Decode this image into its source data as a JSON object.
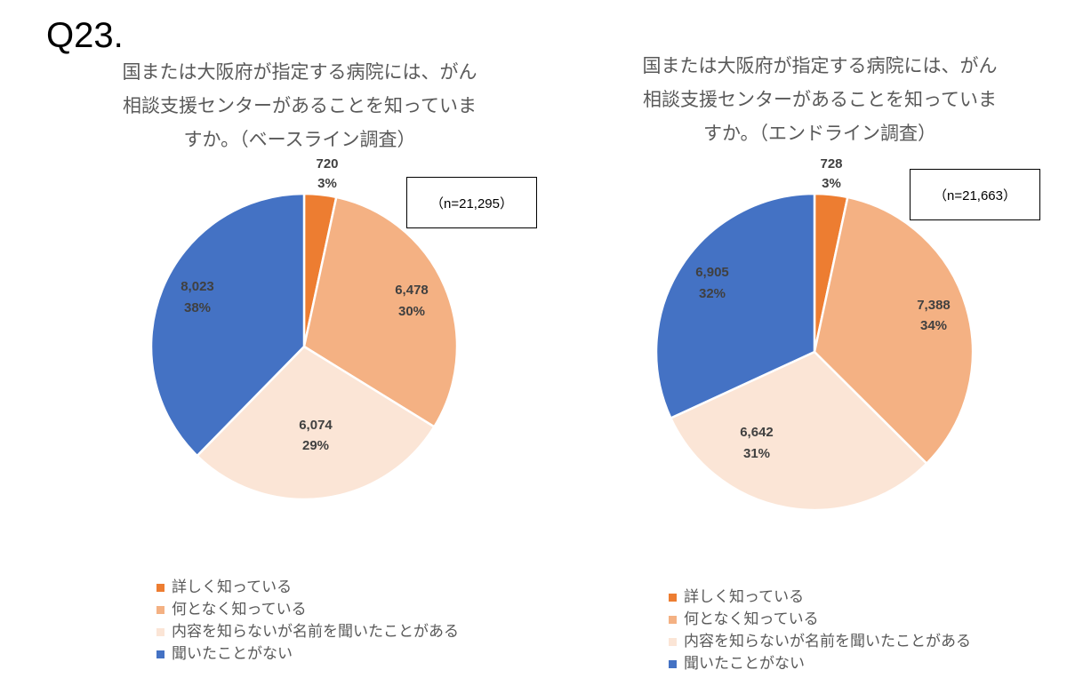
{
  "page": {
    "question_number": "Q23."
  },
  "colors": {
    "detail": "#ED7D31",
    "somewhat": "#F4B183",
    "name_only": "#FBE5D6",
    "never": "#4472C4"
  },
  "charts": [
    {
      "title_lines": [
        "国または大阪府が指定する病院には、がん",
        "相談支援センターがあることを知っていま",
        "すか。（ベースライン調査）"
      ],
      "n_label": "（n=21,295）",
      "slices": [
        {
          "value_label": "720",
          "pct_label": "3%"
        },
        {
          "value_label": "6,478",
          "pct_label": "30%"
        },
        {
          "value_label": "6,074",
          "pct_label": "29%"
        },
        {
          "value_label": "8,023",
          "pct_label": "38%"
        }
      ],
      "legend": [
        "詳しく知っている",
        "何となく知っている",
        "内容を知らないが名前を聞いたことがある",
        "聞いたことがない"
      ]
    },
    {
      "title_lines": [
        "国または大阪府が指定する病院には、がん",
        "相談支援センターがあることを知っていま",
        "すか。（エンドライン調査）"
      ],
      "n_label": "（n=21,663）",
      "slices": [
        {
          "value_label": "728",
          "pct_label": "3%"
        },
        {
          "value_label": "7,388",
          "pct_label": "34%"
        },
        {
          "value_label": "6,642",
          "pct_label": "31%"
        },
        {
          "value_label": "6,905",
          "pct_label": "32%"
        }
      ],
      "legend": [
        "詳しく知っている",
        "何となく知っている",
        "内容を知らないが名前を聞いたことがある",
        "聞いたことがない"
      ]
    }
  ],
  "chart_data": [
    {
      "type": "pie",
      "title": "国または大阪府が指定する病院には、がん相談支援センターがあることを知っていますか。（ベースライン調査）",
      "n": 21295,
      "categories": [
        "詳しく知っている",
        "何となく知っている",
        "内容を知らないが名前を聞いたことがある",
        "聞いたことがない"
      ],
      "values": [
        720,
        6478,
        6074,
        8023
      ],
      "percentages": [
        3,
        30,
        29,
        38
      ],
      "colors": [
        "#ED7D31",
        "#F4B183",
        "#FBE5D6",
        "#4472C4"
      ],
      "legend_position": "bottom"
    },
    {
      "type": "pie",
      "title": "国または大阪府が指定する病院には、がん相談支援センターがあることを知っていますか。（エンドライン調査）",
      "n": 21663,
      "categories": [
        "詳しく知っている",
        "何となく知っている",
        "内容を知らないが名前を聞いたことがある",
        "聞いたことがない"
      ],
      "values": [
        728,
        7388,
        6642,
        6905
      ],
      "percentages": [
        3,
        34,
        31,
        32
      ],
      "colors": [
        "#ED7D31",
        "#F4B183",
        "#FBE5D6",
        "#4472C4"
      ],
      "legend_position": "bottom"
    }
  ]
}
